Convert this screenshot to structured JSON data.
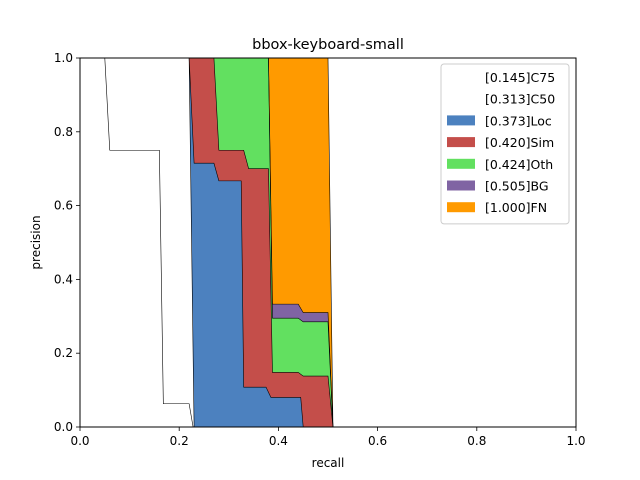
{
  "chart_data": {
    "type": "area",
    "title": "bbox-keyboard-small",
    "xlabel": "recall",
    "ylabel": "precision",
    "xlim": [
      0,
      1
    ],
    "ylim": [
      0,
      1
    ],
    "xticks": [
      "0.0",
      "0.2",
      "0.4",
      "0.6",
      "0.8",
      "1.0"
    ],
    "yticks": [
      "0.0",
      "0.2",
      "0.4",
      "0.6",
      "0.8",
      "1.0"
    ],
    "grid": false,
    "legend_position": "top-right",
    "series": [
      {
        "name": "[0.145]C75",
        "color": "#ffffff",
        "points": [
          [
            0.0,
            1.0
          ],
          [
            0.05,
            1.0
          ],
          [
            0.06,
            0.75
          ],
          [
            0.16,
            0.75
          ],
          [
            0.168,
            0.063
          ],
          [
            0.22,
            0.063
          ],
          [
            0.228,
            0.0
          ],
          [
            0.0,
            0.0
          ]
        ]
      },
      {
        "name": "[0.313]C50",
        "color": "#ffffff",
        "points": [
          [
            0.0,
            1.0
          ],
          [
            0.22,
            1.0
          ],
          [
            0.23,
            0.0
          ],
          [
            0.0,
            0.0
          ]
        ]
      },
      {
        "name": "[0.373]Loc",
        "color": "#4c81bf",
        "points": [
          [
            0.0,
            1.0
          ],
          [
            0.22,
            1.0
          ],
          [
            0.23,
            0.715
          ],
          [
            0.27,
            0.715
          ],
          [
            0.28,
            0.667
          ],
          [
            0.325,
            0.667
          ],
          [
            0.33,
            0.108
          ],
          [
            0.375,
            0.108
          ],
          [
            0.385,
            0.08
          ],
          [
            0.445,
            0.08
          ],
          [
            0.45,
            0.0
          ],
          [
            0.51,
            0.0
          ],
          [
            0.0,
            0.0
          ]
        ]
      },
      {
        "name": "[0.420]Sim",
        "color": "#c44e4a",
        "points": [
          [
            0.0,
            1.0
          ],
          [
            0.27,
            1.0
          ],
          [
            0.28,
            0.75
          ],
          [
            0.33,
            0.75
          ],
          [
            0.34,
            0.7
          ],
          [
            0.38,
            0.7
          ],
          [
            0.388,
            0.148
          ],
          [
            0.44,
            0.148
          ],
          [
            0.45,
            0.138
          ],
          [
            0.5,
            0.138
          ],
          [
            0.51,
            0.0
          ],
          [
            0.0,
            0.0
          ]
        ]
      },
      {
        "name": "[0.424]Oth",
        "color": "#62e060",
        "points": [
          [
            0.0,
            1.0
          ],
          [
            0.38,
            1.0
          ],
          [
            0.388,
            0.295
          ],
          [
            0.44,
            0.295
          ],
          [
            0.45,
            0.285
          ],
          [
            0.5,
            0.285
          ],
          [
            0.51,
            0.0
          ],
          [
            0.0,
            0.0
          ]
        ]
      },
      {
        "name": "[0.505]BG",
        "color": "#8064a3",
        "points": [
          [
            0.0,
            1.0
          ],
          [
            0.38,
            1.0
          ],
          [
            0.388,
            0.333
          ],
          [
            0.44,
            0.333
          ],
          [
            0.45,
            0.31
          ],
          [
            0.5,
            0.31
          ],
          [
            0.51,
            0.0
          ],
          [
            0.0,
            0.0
          ]
        ]
      },
      {
        "name": "[1.000]FN",
        "color": "#ff9a00",
        "points": [
          [
            0.0,
            1.0
          ],
          [
            0.5,
            1.0
          ],
          [
            0.51,
            0.0
          ],
          [
            0.0,
            0.0
          ]
        ]
      }
    ]
  }
}
